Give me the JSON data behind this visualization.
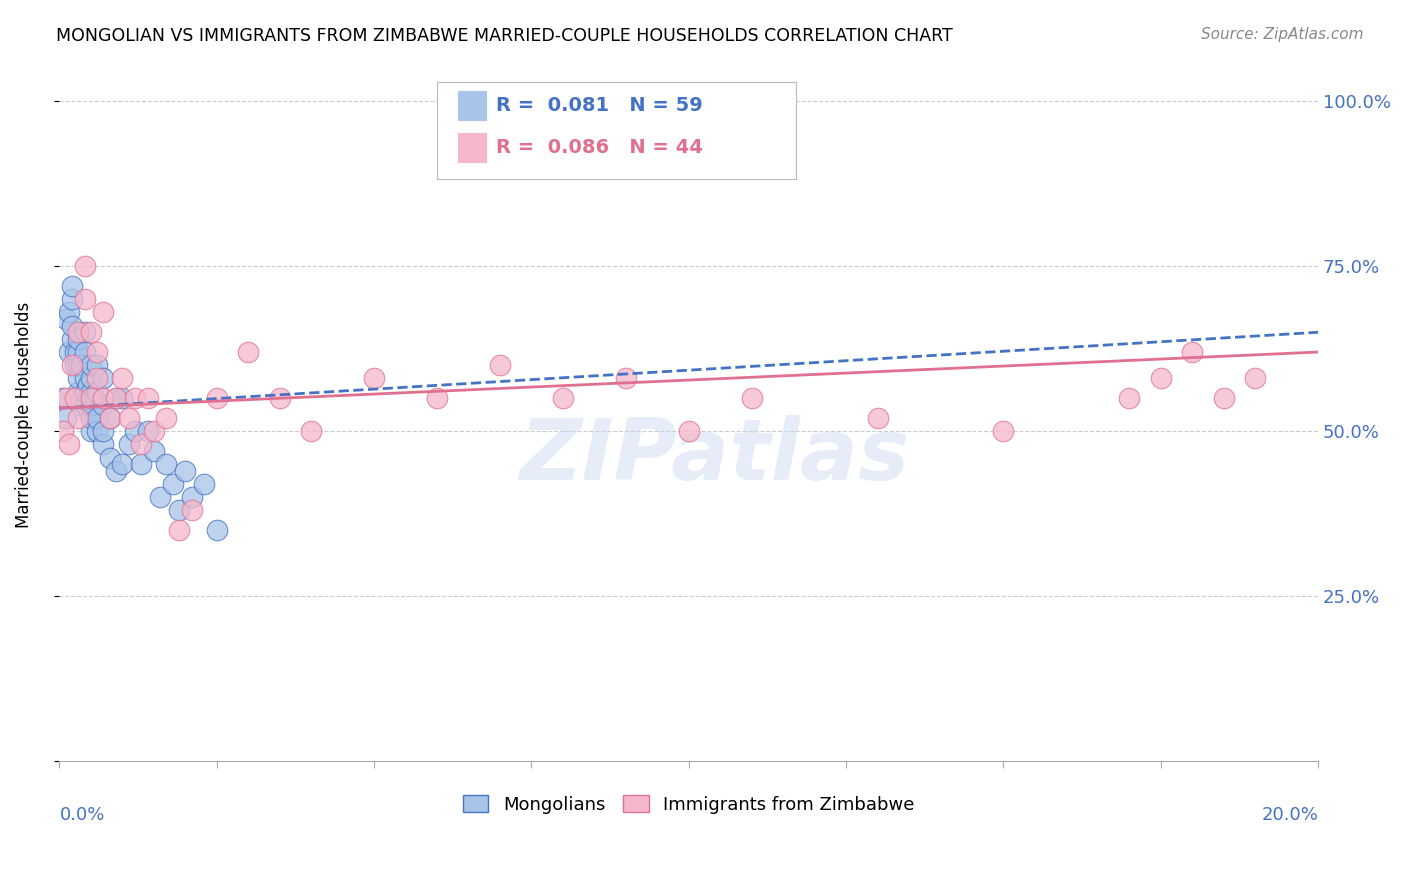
{
  "title": "MONGOLIAN VS IMMIGRANTS FROM ZIMBABWE MARRIED-COUPLE HOUSEHOLDS CORRELATION CHART",
  "source": "Source: ZipAtlas.com",
  "ylabel": "Married-couple Households",
  "legend1_r": "0.081",
  "legend1_n": "59",
  "legend2_r": "0.086",
  "legend2_n": "44",
  "blue_color": "#a8c4e8",
  "pink_color": "#f5b8cb",
  "line_blue": "#4472c4",
  "line_pink": "#e07090",
  "watermark": "ZIPatlas",
  "xlim": [
    0.0,
    0.2
  ],
  "ylim": [
    0.0,
    1.05
  ],
  "mongolian_x": [
    0.0005,
    0.001,
    0.001,
    0.0015,
    0.0015,
    0.002,
    0.002,
    0.002,
    0.002,
    0.0025,
    0.0025,
    0.003,
    0.003,
    0.003,
    0.003,
    0.003,
    0.0035,
    0.0035,
    0.004,
    0.004,
    0.004,
    0.004,
    0.004,
    0.0045,
    0.0045,
    0.005,
    0.005,
    0.005,
    0.005,
    0.005,
    0.005,
    0.0055,
    0.006,
    0.006,
    0.006,
    0.006,
    0.007,
    0.007,
    0.007,
    0.007,
    0.008,
    0.008,
    0.009,
    0.009,
    0.01,
    0.01,
    0.011,
    0.012,
    0.013,
    0.014,
    0.015,
    0.016,
    0.017,
    0.018,
    0.019,
    0.02,
    0.021,
    0.023,
    0.025
  ],
  "mongolian_y": [
    0.55,
    0.52,
    0.67,
    0.62,
    0.68,
    0.64,
    0.66,
    0.7,
    0.72,
    0.6,
    0.62,
    0.56,
    0.58,
    0.6,
    0.62,
    0.64,
    0.55,
    0.6,
    0.54,
    0.56,
    0.58,
    0.62,
    0.65,
    0.53,
    0.57,
    0.5,
    0.52,
    0.54,
    0.56,
    0.58,
    0.6,
    0.55,
    0.5,
    0.52,
    0.56,
    0.6,
    0.48,
    0.5,
    0.54,
    0.58,
    0.46,
    0.52,
    0.44,
    0.55,
    0.45,
    0.55,
    0.48,
    0.5,
    0.45,
    0.5,
    0.47,
    0.4,
    0.45,
    0.42,
    0.38,
    0.44,
    0.4,
    0.42,
    0.35
  ],
  "zimbabwe_x": [
    0.0005,
    0.001,
    0.0015,
    0.002,
    0.0025,
    0.003,
    0.003,
    0.004,
    0.004,
    0.005,
    0.005,
    0.006,
    0.006,
    0.007,
    0.007,
    0.008,
    0.009,
    0.01,
    0.011,
    0.012,
    0.013,
    0.014,
    0.015,
    0.017,
    0.019,
    0.021,
    0.025,
    0.03,
    0.035,
    0.04,
    0.05,
    0.06,
    0.07,
    0.08,
    0.09,
    0.1,
    0.11,
    0.13,
    0.15,
    0.17,
    0.175,
    0.18,
    0.185,
    0.19
  ],
  "zimbabwe_y": [
    0.5,
    0.55,
    0.48,
    0.6,
    0.55,
    0.52,
    0.65,
    0.7,
    0.75,
    0.55,
    0.65,
    0.58,
    0.62,
    0.55,
    0.68,
    0.52,
    0.55,
    0.58,
    0.52,
    0.55,
    0.48,
    0.55,
    0.5,
    0.52,
    0.35,
    0.38,
    0.55,
    0.62,
    0.55,
    0.5,
    0.58,
    0.55,
    0.6,
    0.55,
    0.58,
    0.5,
    0.55,
    0.52,
    0.5,
    0.55,
    0.58,
    0.62,
    0.55,
    0.58
  ]
}
